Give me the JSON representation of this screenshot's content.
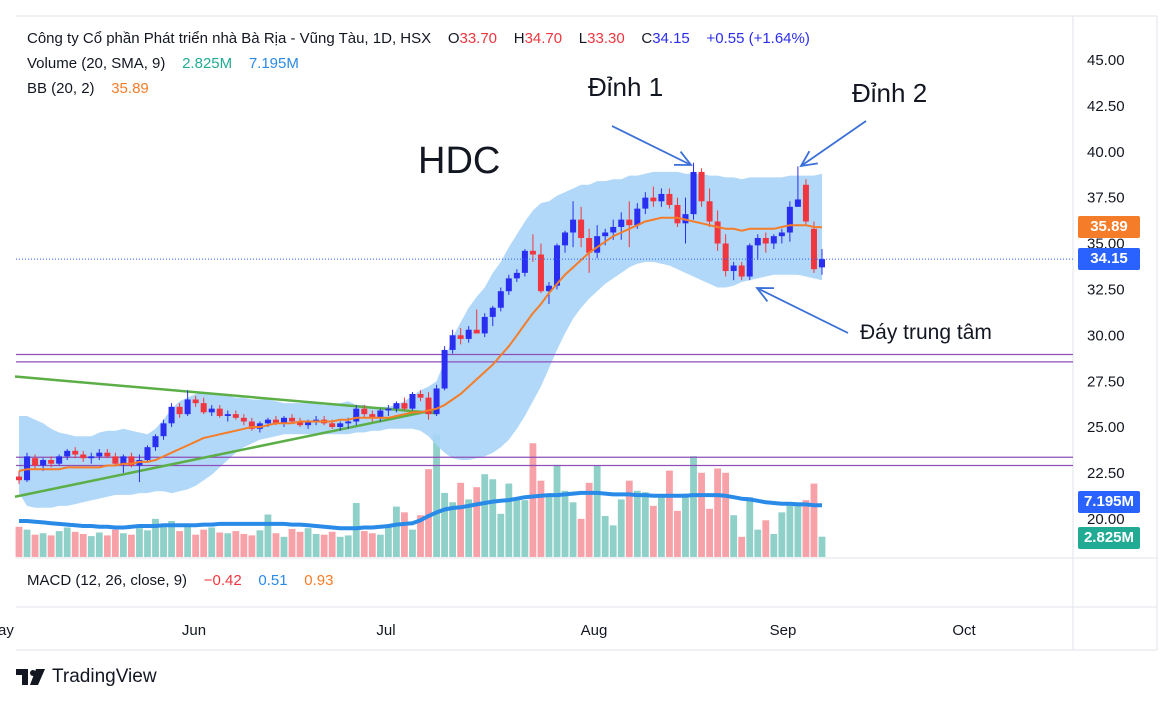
{
  "legend": {
    "title": "Công ty Cổ phần Phát triển nhà Bà Rịa - Vũng Tàu, 1D, HSX",
    "open_label": "O",
    "open": "33.70",
    "high_label": "H",
    "high": "34.70",
    "low_label": "L",
    "low": "33.30",
    "close_label": "C",
    "close": "34.15",
    "change": "+0.55 (+1.64%)",
    "volume_label": "Volume (20, SMA, 9)",
    "volume_value": "2.825M",
    "volume_sma": "7.195M",
    "bb_label": "BB (20, 2)",
    "bb_value": "35.89",
    "macd_label": "MACD (12, 26, close, 9)",
    "macd_value": "−0.42",
    "macd_signal": "0.51",
    "macd_hist": "0.93"
  },
  "annotations": {
    "ticker": "HDC",
    "peak1": "Đỉnh 1",
    "peak2": "Đỉnh 2",
    "mid_bottom": "Đáy trung tâm"
  },
  "price_badges": {
    "bb_basis": "35.89",
    "last_price": "34.15",
    "vol_sma": "7.195M",
    "vol_last": "2.825M"
  },
  "brand": {
    "name": "TradingView"
  },
  "colors": {
    "up": "#2a2ef0",
    "down": "#f0363f",
    "vol_up": "#8fd0c9",
    "vol_down": "#f7a1a8",
    "bb_fill": "#a8d4f7",
    "bb_basis": "#f57c28",
    "vol_sma": "#2a8ae8",
    "trend": "#5cae47",
    "zone": "#8e4fb8",
    "arrow": "#3a6fd8",
    "badge_blue": "#2962ff",
    "badge_teal": "#22ab94"
  },
  "chart_data": {
    "type": "candlestick",
    "x_ticks": [
      "ay",
      "Jun",
      "Jul",
      "Aug",
      "Sep",
      "Oct"
    ],
    "y_ticks": [
      "45.00",
      "42.50",
      "40.00",
      "37.50",
      "35.00",
      "32.50",
      "30.00",
      "27.50",
      "25.00",
      "22.50",
      "20.00"
    ],
    "ylim": [
      19.5,
      46.0
    ],
    "candles": [
      [
        22.3,
        22.6,
        21.9,
        22.1
      ],
      [
        22.1,
        23.6,
        22.0,
        23.4
      ],
      [
        23.3,
        23.5,
        22.7,
        22.9
      ],
      [
        22.9,
        23.3,
        22.6,
        23.2
      ],
      [
        23.2,
        23.4,
        22.8,
        23.0
      ],
      [
        23.0,
        23.5,
        22.9,
        23.4
      ],
      [
        23.4,
        23.8,
        23.2,
        23.7
      ],
      [
        23.7,
        23.9,
        23.3,
        23.5
      ],
      [
        23.5,
        23.7,
        23.1,
        23.3
      ],
      [
        23.3,
        23.6,
        23.0,
        23.4
      ],
      [
        23.4,
        23.8,
        23.2,
        23.6
      ],
      [
        23.6,
        23.8,
        23.3,
        23.4
      ],
      [
        23.4,
        23.6,
        22.9,
        23.0
      ],
      [
        23.0,
        23.5,
        22.5,
        23.4
      ],
      [
        23.4,
        23.6,
        22.8,
        22.9
      ],
      [
        22.9,
        23.5,
        22.0,
        23.2
      ],
      [
        23.2,
        24.0,
        23.1,
        23.9
      ],
      [
        23.9,
        24.6,
        23.7,
        24.5
      ],
      [
        24.5,
        25.4,
        24.3,
        25.2
      ],
      [
        25.2,
        26.3,
        25.0,
        26.1
      ],
      [
        26.1,
        26.3,
        25.5,
        25.7
      ],
      [
        25.7,
        27.0,
        25.6,
        26.5
      ],
      [
        26.5,
        26.7,
        26.1,
        26.3
      ],
      [
        26.3,
        26.6,
        25.7,
        25.8
      ],
      [
        25.8,
        26.2,
        25.6,
        26.0
      ],
      [
        26.0,
        26.2,
        25.5,
        25.6
      ],
      [
        25.6,
        25.9,
        25.3,
        25.7
      ],
      [
        25.7,
        25.9,
        25.4,
        25.5
      ],
      [
        25.5,
        25.7,
        25.1,
        25.3
      ],
      [
        25.3,
        25.5,
        24.8,
        24.9
      ],
      [
        24.9,
        25.3,
        24.7,
        25.2
      ],
      [
        25.2,
        25.5,
        25.0,
        25.4
      ],
      [
        25.4,
        25.6,
        25.1,
        25.2
      ],
      [
        25.2,
        25.6,
        25.0,
        25.5
      ],
      [
        25.5,
        25.7,
        25.2,
        25.3
      ],
      [
        25.3,
        25.5,
        25.0,
        25.1
      ],
      [
        25.1,
        25.4,
        24.9,
        25.3
      ],
      [
        25.3,
        25.6,
        25.1,
        25.4
      ],
      [
        25.4,
        25.6,
        25.1,
        25.2
      ],
      [
        25.2,
        25.4,
        24.9,
        25.0
      ],
      [
        25.0,
        25.3,
        24.8,
        25.2
      ],
      [
        25.2,
        25.5,
        24.9,
        25.3
      ],
      [
        25.3,
        26.2,
        25.1,
        26.0
      ],
      [
        26.0,
        26.2,
        25.5,
        25.7
      ],
      [
        25.7,
        25.9,
        25.3,
        25.5
      ],
      [
        25.5,
        26.0,
        25.3,
        25.9
      ],
      [
        25.9,
        26.2,
        25.6,
        26.0
      ],
      [
        26.0,
        26.4,
        25.8,
        26.3
      ],
      [
        26.3,
        26.6,
        25.9,
        26.0
      ],
      [
        26.0,
        26.9,
        25.9,
        26.8
      ],
      [
        26.8,
        27.0,
        26.4,
        26.6
      ],
      [
        26.6,
        26.9,
        25.4,
        25.7
      ],
      [
        25.7,
        27.3,
        25.6,
        27.1
      ],
      [
        27.1,
        29.4,
        27.0,
        29.2
      ],
      [
        29.2,
        30.3,
        29.0,
        30.0
      ],
      [
        30.0,
        30.4,
        29.5,
        29.8
      ],
      [
        29.8,
        30.5,
        29.6,
        30.3
      ],
      [
        30.3,
        31.4,
        30.1,
        30.1
      ],
      [
        30.1,
        31.2,
        29.9,
        31.0
      ],
      [
        31.0,
        31.6,
        30.5,
        31.5
      ],
      [
        31.5,
        32.6,
        31.3,
        32.4
      ],
      [
        32.4,
        33.3,
        32.2,
        33.1
      ],
      [
        33.1,
        33.6,
        32.9,
        33.4
      ],
      [
        33.4,
        34.7,
        33.2,
        34.6
      ],
      [
        34.6,
        35.5,
        34.0,
        34.4
      ],
      [
        34.4,
        35.0,
        32.3,
        32.4
      ],
      [
        32.4,
        32.9,
        31.7,
        32.7
      ],
      [
        32.7,
        35.0,
        32.5,
        34.9
      ],
      [
        34.9,
        35.7,
        34.5,
        35.6
      ],
      [
        35.6,
        37.3,
        34.8,
        36.3
      ],
      [
        36.3,
        37.0,
        34.8,
        35.3
      ],
      [
        35.3,
        35.8,
        33.4,
        34.5
      ],
      [
        34.5,
        36.0,
        34.2,
        35.4
      ],
      [
        35.4,
        35.8,
        34.9,
        35.6
      ],
      [
        35.6,
        36.3,
        35.2,
        35.9
      ],
      [
        35.9,
        36.7,
        35.2,
        36.3
      ],
      [
        36.3,
        37.3,
        34.8,
        36.0
      ],
      [
        36.0,
        37.2,
        35.8,
        36.9
      ],
      [
        36.9,
        37.8,
        36.6,
        37.5
      ],
      [
        37.5,
        38.1,
        37.0,
        37.3
      ],
      [
        37.3,
        38.0,
        37.0,
        37.7
      ],
      [
        37.7,
        38.0,
        36.9,
        37.1
      ],
      [
        37.1,
        37.5,
        35.9,
        36.1
      ],
      [
        36.1,
        37.5,
        35.0,
        36.6
      ],
      [
        36.6,
        39.4,
        36.3,
        38.9
      ],
      [
        38.9,
        39.1,
        37.0,
        37.3
      ],
      [
        37.3,
        38.0,
        35.9,
        36.2
      ],
      [
        36.2,
        36.8,
        34.6,
        35.0
      ],
      [
        35.0,
        35.5,
        33.2,
        33.5
      ],
      [
        33.5,
        34.0,
        33.0,
        33.8
      ],
      [
        33.8,
        34.0,
        33.0,
        33.2
      ],
      [
        33.2,
        35.0,
        33.0,
        34.9
      ],
      [
        34.9,
        35.5,
        34.1,
        35.3
      ],
      [
        35.3,
        35.6,
        34.5,
        35.0
      ],
      [
        35.0,
        35.5,
        34.7,
        35.4
      ],
      [
        35.4,
        35.8,
        35.0,
        35.6
      ],
      [
        35.6,
        37.3,
        35.1,
        37.0
      ],
      [
        37.0,
        39.2,
        37.0,
        37.4
      ],
      [
        38.2,
        38.5,
        36.0,
        36.2
      ],
      [
        35.8,
        36.2,
        33.4,
        33.6
      ],
      [
        33.7,
        34.7,
        33.3,
        34.15
      ]
    ],
    "volume": [
      4.2,
      3.8,
      3.1,
      3.3,
      3.0,
      3.6,
      4.1,
      3.5,
      3.2,
      2.9,
      3.4,
      3.0,
      3.8,
      3.3,
      3.1,
      4.0,
      3.7,
      5.3,
      4.2,
      5.0,
      3.6,
      4.5,
      3.1,
      3.8,
      4.1,
      3.4,
      3.3,
      3.6,
      3.2,
      3.0,
      3.7,
      5.9,
      3.3,
      2.8,
      3.9,
      3.5,
      4.0,
      3.2,
      3.1,
      3.5,
      2.8,
      3.0,
      7.5,
      3.6,
      3.3,
      3.1,
      4.5,
      7.0,
      6.2,
      3.8,
      5.8,
      12.2,
      17.0,
      8.9,
      7.6,
      10.3,
      8.0,
      9.7,
      11.5,
      10.8,
      6.0,
      10.2,
      8.3,
      7.9,
      15.8,
      10.6,
      8.8,
      12.8,
      9.2,
      7.6,
      5.3,
      10.3,
      12.7,
      5.7,
      4.4,
      8.0,
      10.6,
      9.2,
      9.0,
      7.1,
      8.3,
      12.0,
      6.4,
      8.8,
      14.0,
      11.7,
      6.7,
      12.3,
      11.7,
      5.8,
      2.8,
      8.3,
      3.8,
      5.1,
      3.2,
      6.2,
      7.3,
      7.6,
      7.9,
      10.2,
      2.825
    ],
    "bb_upper": [
      25.6,
      25.6,
      25.4,
      25.2,
      24.9,
      24.7,
      24.6,
      24.5,
      24.5,
      24.5,
      24.7,
      24.8,
      24.8,
      24.9,
      24.8,
      24.7,
      24.6,
      24.9,
      25.4,
      26.0,
      26.4,
      26.6,
      26.8,
      26.9,
      26.8,
      26.8,
      26.7,
      26.6,
      26.6,
      26.5,
      26.5,
      26.5,
      26.4,
      26.3,
      26.3,
      26.3,
      26.3,
      26.3,
      26.2,
      26.2,
      26.3,
      26.4,
      26.2,
      26.2,
      26.1,
      26.1,
      26.1,
      26.2,
      26.4,
      26.7,
      27.0,
      27.2,
      27.5,
      28.6,
      29.9,
      30.7,
      31.5,
      32.1,
      32.6,
      33.4,
      34.0,
      34.8,
      35.5,
      36.2,
      36.8,
      37.2,
      37.3,
      37.6,
      37.8,
      38.0,
      38.2,
      38.2,
      38.4,
      38.4,
      38.5,
      38.5,
      38.7,
      38.7,
      38.8,
      38.9,
      38.9,
      38.9,
      38.9,
      38.8,
      38.8,
      38.8,
      38.7,
      38.7,
      38.6,
      38.6,
      38.5,
      38.6,
      38.6,
      38.6,
      38.6,
      38.6,
      38.7,
      38.7,
      38.7,
      38.7,
      38.8
    ],
    "bb_lower": [
      21.4,
      20.7,
      20.6,
      20.6,
      20.6,
      20.7,
      20.7,
      20.8,
      20.9,
      21.0,
      21.1,
      21.2,
      21.3,
      21.3,
      21.3,
      21.4,
      21.4,
      21.5,
      21.5,
      21.4,
      21.5,
      21.6,
      21.8,
      22.1,
      22.4,
      22.8,
      23.2,
      23.6,
      23.9,
      24.1,
      24.3,
      24.4,
      24.5,
      24.6,
      24.6,
      24.6,
      24.6,
      24.6,
      24.6,
      24.6,
      24.6,
      24.6,
      24.7,
      24.7,
      24.8,
      24.8,
      24.9,
      24.9,
      24.9,
      24.9,
      24.8,
      24.5,
      24.0,
      23.6,
      23.3,
      23.2,
      23.2,
      23.3,
      23.4,
      23.6,
      23.9,
      24.3,
      24.9,
      25.6,
      26.4,
      27.2,
      28.2,
      29.2,
      30.1,
      30.9,
      31.5,
      32.0,
      32.4,
      32.8,
      33.1,
      33.4,
      33.7,
      33.9,
      34.0,
      34.0,
      33.9,
      33.8,
      33.6,
      33.4,
      33.2,
      33.0,
      32.8,
      32.6,
      32.6,
      32.7,
      32.9,
      33.0,
      33.1,
      33.2,
      33.3,
      33.3,
      33.3,
      33.3,
      33.2,
      33.1,
      33.0
    ],
    "bb_basis": [
      22.6,
      22.7,
      22.7,
      22.7,
      22.7,
      22.7,
      22.8,
      22.8,
      22.8,
      22.8,
      22.8,
      22.9,
      22.9,
      23.0,
      23.0,
      23.1,
      23.1,
      23.2,
      23.4,
      23.6,
      23.8,
      24.0,
      24.2,
      24.4,
      24.5,
      24.6,
      24.7,
      24.8,
      24.9,
      25.0,
      25.0,
      25.1,
      25.2,
      25.2,
      25.2,
      25.3,
      25.3,
      25.3,
      25.3,
      25.3,
      25.4,
      25.4,
      25.5,
      25.5,
      25.5,
      25.5,
      25.5,
      25.6,
      25.7,
      25.8,
      25.8,
      25.9,
      26.0,
      26.2,
      26.5,
      26.8,
      27.2,
      27.6,
      28.0,
      28.4,
      28.9,
      29.4,
      30.0,
      30.6,
      31.2,
      31.7,
      32.3,
      32.8,
      33.3,
      33.7,
      34.1,
      34.5,
      34.8,
      35.1,
      35.4,
      35.6,
      35.8,
      36.0,
      36.2,
      36.3,
      36.4,
      36.4,
      36.4,
      36.3,
      36.2,
      36.1,
      36.0,
      35.9,
      35.8,
      35.8,
      35.7,
      35.8,
      35.8,
      35.8,
      35.8,
      35.9,
      36.0,
      36.0,
      36.0,
      35.9,
      35.89
    ],
    "vol_sma": [
      5.0,
      5.0,
      4.9,
      4.8,
      4.7,
      4.6,
      4.5,
      4.4,
      4.3,
      4.3,
      4.2,
      4.2,
      4.1,
      4.1,
      4.2,
      4.3,
      4.3,
      4.3,
      4.4,
      4.4,
      4.4,
      4.4,
      4.4,
      4.5,
      4.5,
      4.6,
      4.6,
      4.6,
      4.6,
      4.6,
      4.6,
      4.6,
      4.6,
      4.6,
      4.5,
      4.5,
      4.4,
      4.3,
      4.2,
      4.1,
      4.0,
      4.0,
      4.0,
      4.1,
      4.1,
      4.2,
      4.3,
      4.5,
      4.6,
      4.7,
      5.1,
      5.7,
      6.2,
      6.6,
      6.8,
      6.9,
      7.1,
      7.3,
      7.5,
      7.7,
      7.8,
      7.9,
      8.1,
      8.3,
      8.4,
      8.5,
      8.6,
      8.6,
      8.7,
      8.8,
      8.9,
      8.9,
      8.9,
      8.8,
      8.7,
      8.7,
      8.7,
      8.6,
      8.6,
      8.5,
      8.5,
      8.5,
      8.5,
      8.5,
      8.6,
      8.6,
      8.6,
      8.6,
      8.5,
      8.3,
      8.1,
      8.0,
      7.8,
      7.6,
      7.5,
      7.4,
      7.4,
      7.3,
      7.3,
      7.2,
      7.195
    ],
    "zones": [
      [
        28.55,
        28.95
      ],
      [
        22.9,
        23.35
      ]
    ],
    "trendlines": [
      {
        "from": [
          -0.5,
          27.75
        ],
        "to": [
          52,
          25.75
        ]
      },
      {
        "from": [
          -0.5,
          21.2
        ],
        "to": [
          52,
          25.95
        ]
      }
    ]
  }
}
